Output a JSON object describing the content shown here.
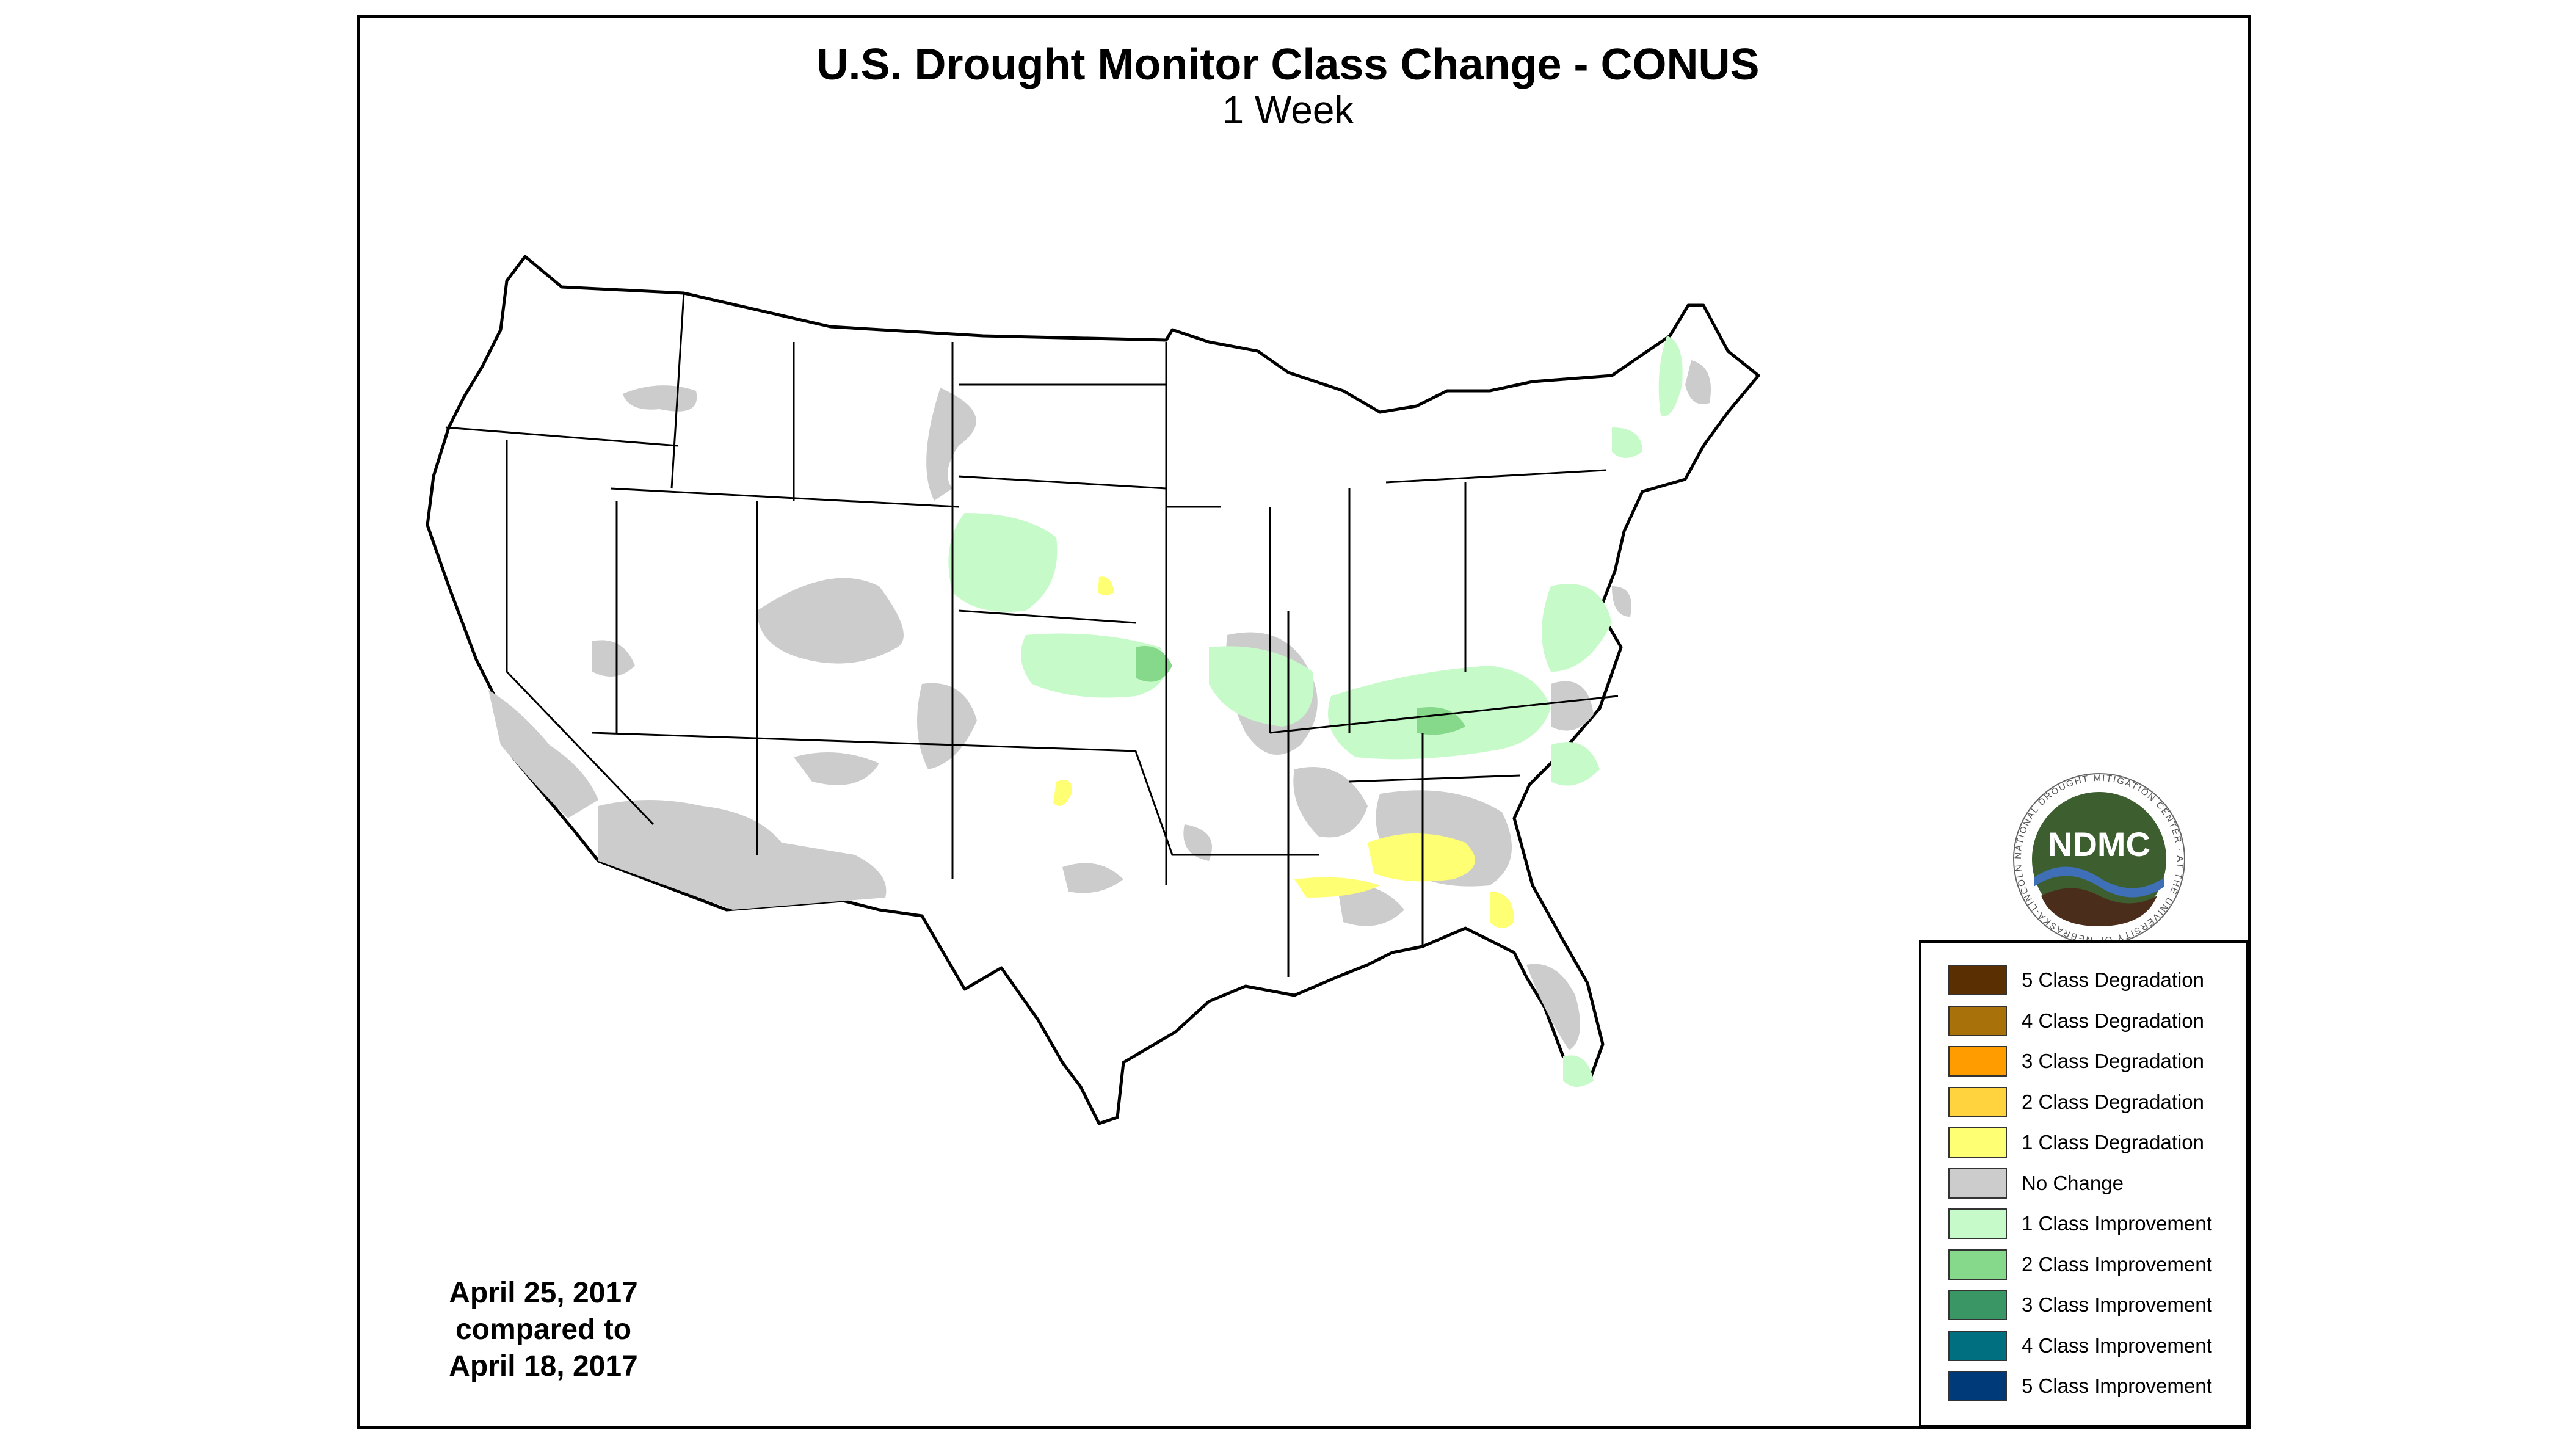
{
  "header": {
    "title": "U.S. Drought Monitor Class Change - CONUS",
    "subtitle": "1 Week"
  },
  "dates": {
    "line1": "April 25, 2017",
    "line2": "compared to",
    "line3": "April 18, 2017"
  },
  "logo": {
    "text": "NDMC",
    "ring_text": "NATIONAL DROUGHT MITIGATION CENTER · AT THE UNIVERSITY OF NEBRASKA-LINCOLN",
    "colors": {
      "green": "#3d5f2f",
      "blue": "#3f6fb6",
      "brown": "#4a2d1a"
    }
  },
  "legend": {
    "items": [
      {
        "label": "5 Class Degradation",
        "color": "#5a3002"
      },
      {
        "label": "4 Class Degradation",
        "color": "#a8710a"
      },
      {
        "label": "3 Class Degradation",
        "color": "#ff9c00"
      },
      {
        "label": "2 Class Degradation",
        "color": "#ffd33d"
      },
      {
        "label": "1 Class Degradation",
        "color": "#ffff73"
      },
      {
        "label": "No Change",
        "color": "#cccccc"
      },
      {
        "label": "1 Class Improvement",
        "color": "#c7fac9"
      },
      {
        "label": "2 Class Improvement",
        "color": "#86d88a"
      },
      {
        "label": "3 Class Improvement",
        "color": "#3a9665"
      },
      {
        "label": "4 Class Improvement",
        "color": "#007080"
      },
      {
        "label": "5 Class Improvement",
        "color": "#003a78"
      }
    ]
  }
}
